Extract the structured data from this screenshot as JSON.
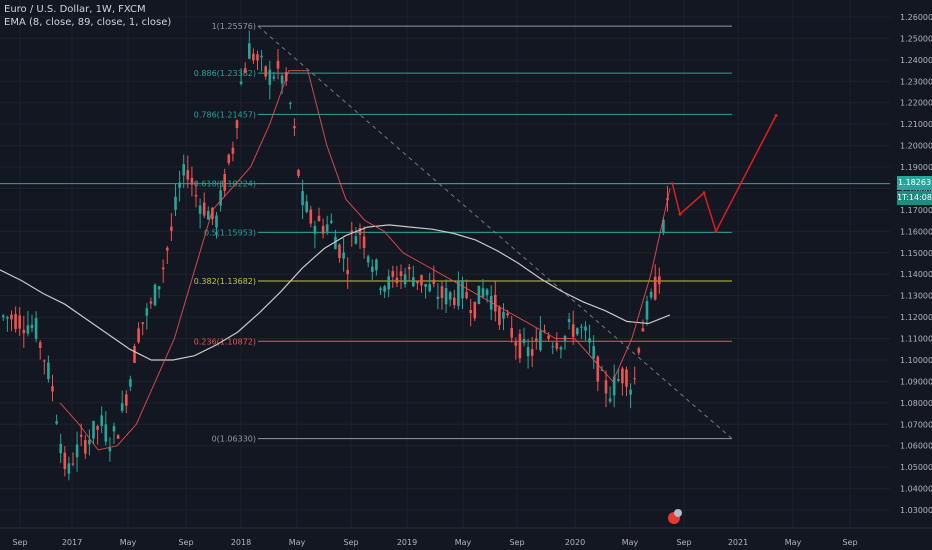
{
  "header": {
    "symbol": "Euro / U.S. Dollar, 1W, FXCM",
    "indicator": "EMA (8, close, 89, close, 1, close)"
  },
  "price_scale": {
    "labels": [
      "1.26000",
      "1.25000",
      "1.24000",
      "1.23000",
      "1.22000",
      "1.21000",
      "1.20000",
      "1.19000",
      "1.18000",
      "1.17000",
      "1.16000",
      "1.15000",
      "1.14000",
      "1.13000",
      "1.12000",
      "1.11000",
      "1.10000",
      "1.09000",
      "1.08000",
      "1.07000",
      "1.06000",
      "1.05000",
      "1.04000",
      "1.03000"
    ],
    "current_price": "1.18263",
    "countdown": "1T:14:08"
  },
  "time_scale": {
    "labels": [
      "Sep",
      "2017",
      "May",
      "Sep",
      "2018",
      "May",
      "Sep",
      "2019",
      "May",
      "Sep",
      "2020",
      "May",
      "Sep",
      "2021",
      "May",
      "Sep"
    ]
  },
  "colors": {
    "background": "#131722",
    "up_candle": "#26a69a",
    "down_candle": "#ef5350",
    "ema_slow": "#c8c8c8",
    "ema_fast": "#ef5350",
    "projection": "#e01e1e"
  },
  "chart_data": {
    "type": "candlestick",
    "title": "Euro / U.S. Dollar, 1W, FXCM",
    "ylim": [
      1.025,
      1.265
    ],
    "grid": true,
    "fibonacci": [
      {
        "label": "1(1.25576)",
        "level": 1.25576,
        "color": "#9598a1"
      },
      {
        "label": "0.886(1.23382)",
        "level": 1.23382,
        "color": "#26a69a"
      },
      {
        "label": "0.786(1.21457)",
        "level": 1.21457,
        "color": "#26a69a"
      },
      {
        "label": "0.618(1.18224)",
        "level": 1.18224,
        "color": "#26a69a"
      },
      {
        "label": "0.5(1.15953)",
        "level": 1.15953,
        "color": "#26a69a"
      },
      {
        "label": "0.382(1.13682)",
        "level": 1.13682,
        "color": "#c0ca33"
      },
      {
        "label": "0.236(1.10872)",
        "level": 1.10872,
        "color": "#ef5350"
      },
      {
        "label": "0(1.06330)",
        "level": 1.0633,
        "color": "#9598a1"
      }
    ],
    "series": [
      {
        "name": "EMA 89",
        "values": [
          1.142,
          1.137,
          1.131,
          1.126,
          1.119,
          1.112,
          1.105,
          1.1,
          1.1,
          1.102,
          1.107,
          1.113,
          1.122,
          1.132,
          1.143,
          1.152,
          1.158,
          1.162,
          1.163,
          1.162,
          1.161,
          1.159,
          1.156,
          1.151,
          1.145,
          1.138,
          1.132,
          1.127,
          1.123,
          1.118,
          1.117,
          1.121
        ]
      },
      {
        "name": "EMA 8",
        "values": [
          1.08,
          1.07,
          1.058,
          1.06,
          1.07,
          1.09,
          1.11,
          1.14,
          1.17,
          1.18,
          1.19,
          1.21,
          1.235,
          1.235,
          1.2,
          1.175,
          1.165,
          1.16,
          1.15,
          1.145,
          1.14,
          1.135,
          1.13,
          1.125,
          1.12,
          1.115,
          1.11,
          1.11,
          1.1,
          1.09,
          1.11,
          1.14,
          1.18
        ]
      }
    ],
    "projection": [
      1.183,
      1.168,
      1.178,
      1.16,
      1.214
    ]
  }
}
